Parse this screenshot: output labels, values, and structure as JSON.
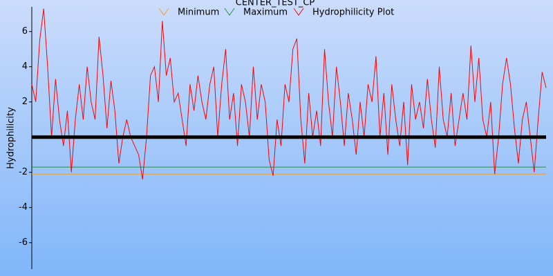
{
  "chart_data": {
    "type": "line",
    "title": "CENTER_TEST_CP",
    "y_label": "Hydrophilicity",
    "x": [
      1,
      2,
      3,
      4,
      5,
      6,
      7,
      8,
      9,
      10,
      11,
      12,
      13,
      14,
      15,
      16,
      17,
      18,
      19,
      20,
      21,
      22,
      23,
      24,
      25,
      26,
      27,
      28,
      29,
      30,
      31,
      32,
      33,
      34,
      35,
      36,
      37,
      38,
      39,
      40,
      41,
      42,
      43,
      44,
      45,
      46,
      47,
      48,
      49,
      50,
      51,
      52,
      53,
      54,
      55,
      56,
      57,
      58,
      59,
      60,
      61,
      62,
      63,
      64,
      65,
      66,
      67,
      68,
      69,
      70,
      71,
      72,
      73,
      74,
      75,
      76,
      77,
      78,
      79,
      80,
      81,
      82,
      83,
      84,
      85,
      86,
      87,
      88,
      89,
      90,
      91,
      92,
      93,
      94,
      95,
      96,
      97,
      98,
      99,
      100,
      101,
      102,
      103,
      104,
      105,
      106,
      107,
      108,
      109,
      110,
      111,
      112,
      113,
      114,
      115,
      116,
      117,
      118,
      119,
      120,
      121,
      122,
      123,
      124,
      125,
      126,
      127,
      128,
      129,
      130,
      131
    ],
    "xlim": [
      1,
      131
    ],
    "ylim": [
      -7.5,
      7.4
    ],
    "yticks": [
      -6,
      -4,
      -2,
      2,
      4,
      6
    ],
    "zero_line": true,
    "series": [
      {
        "name": "Minimum",
        "color": "#f0a030",
        "x": [
          1,
          131
        ],
        "values": [
          -2.1,
          -2.1
        ]
      },
      {
        "name": "Maximum",
        "color": "#209040",
        "x": [
          1,
          131
        ],
        "values": [
          -1.7,
          -1.7
        ]
      },
      {
        "name": "Hydrophilicity Plot",
        "color": "#ff0000",
        "values": [
          3,
          2,
          5.5,
          7.3,
          4,
          0,
          3.3,
          1,
          -0.5,
          1.5,
          -2,
          1,
          3,
          1,
          4,
          2,
          1,
          5.7,
          3.5,
          0.5,
          3.2,
          1.5,
          -1.5,
          0,
          1,
          0,
          -0.5,
          -1,
          -2.4,
          0,
          3.5,
          4,
          2,
          6.6,
          3.5,
          4.5,
          2,
          2.5,
          1,
          -0.5,
          3,
          1.5,
          3.5,
          2,
          1,
          3,
          4,
          0,
          3,
          5,
          1,
          2.5,
          -0.5,
          3,
          2,
          0,
          4,
          1,
          3,
          2,
          -1.3,
          -2.2,
          1,
          -0.5,
          3,
          2,
          5,
          5.6,
          1,
          -1.5,
          2.5,
          0,
          1.5,
          -0.5,
          5,
          2,
          0,
          4,
          2,
          -0.5,
          2.5,
          1,
          -1,
          2,
          0,
          3,
          2,
          4.6,
          0,
          2.5,
          -1,
          3,
          1,
          -0.5,
          2,
          -1.6,
          3,
          1,
          2,
          0.5,
          3.3,
          1,
          -0.6,
          4,
          1,
          0,
          2.5,
          -0.5,
          1,
          2.5,
          1,
          5.2,
          2,
          4.5,
          1,
          0,
          2,
          -2.1,
          0,
          3,
          4.5,
          3,
          0.5,
          -1.5,
          1,
          2,
          0,
          -2,
          1,
          3.7,
          2.8
        ]
      }
    ]
  }
}
